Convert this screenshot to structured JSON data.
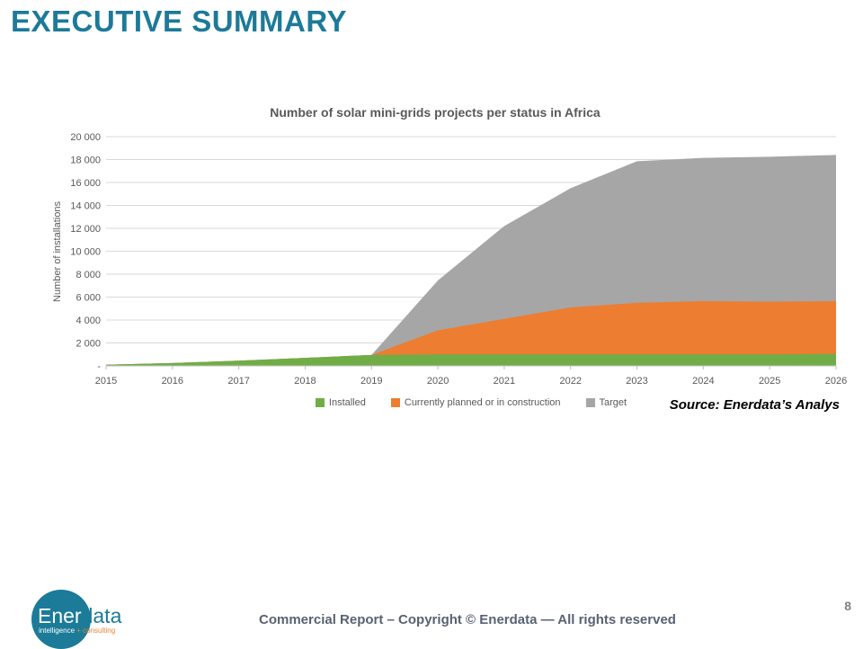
{
  "slide": {
    "title": "EXECUTIVE SUMMARY",
    "page_number": "8",
    "footer_text": "Commercial Report – Copyright © Enerdata — All rights reserved",
    "source_note": "Source: Enerdata’s Analys",
    "logo": {
      "name_part1": "Ener",
      "name_part2": "data",
      "tagline_left": "intelligence",
      "tagline_right": "+ consulting"
    }
  },
  "colors": {
    "accent_teal": "#1d7a99",
    "installed_green": "#70ad47",
    "planned_orange": "#ed7d31",
    "target_gray": "#a6a6a6",
    "gridline": "#d9d9d9",
    "axis_line": "#bfbfbf",
    "axis_text": "#595959",
    "footer_text": "#596273",
    "logo_orange": "#e8833a"
  },
  "chart_data": {
    "type": "area",
    "stacked": true,
    "title": "Number of solar mini-grids projects per status in Africa",
    "xlabel": "",
    "ylabel": "Number of installations",
    "categories": [
      "2015",
      "2016",
      "2017",
      "2018",
      "2019",
      "2020",
      "2021",
      "2022",
      "2023",
      "2024",
      "2025",
      "2026"
    ],
    "series": [
      {
        "name": "Installed",
        "color": "#70ad47",
        "values": [
          100,
          250,
          450,
          700,
          950,
          1000,
          1000,
          1000,
          1000,
          1000,
          1000,
          1050
        ]
      },
      {
        "name": "Currently planned or in construction",
        "color": "#ed7d31",
        "values": [
          0,
          0,
          0,
          0,
          0,
          2100,
          3100,
          4100,
          4500,
          4650,
          4600,
          4600
        ]
      },
      {
        "name": "Target",
        "color": "#a6a6a6",
        "values": [
          0,
          0,
          0,
          0,
          0,
          4350,
          8100,
          10400,
          12350,
          12500,
          12650,
          12750
        ]
      }
    ],
    "stacked_totals": [
      100,
      250,
      450,
      700,
      950,
      7450,
      12200,
      15500,
      17850,
      18150,
      18250,
      18400
    ],
    "ylim": [
      0,
      20000
    ],
    "ytick_step": 2000,
    "ytick_labels": [
      "-",
      "2 000",
      "4 000",
      "6 000",
      "8 000",
      "10 000",
      "12 000",
      "14 000",
      "16 000",
      "18 000",
      "20 000"
    ],
    "grid": true,
    "legend_position": "bottom"
  }
}
